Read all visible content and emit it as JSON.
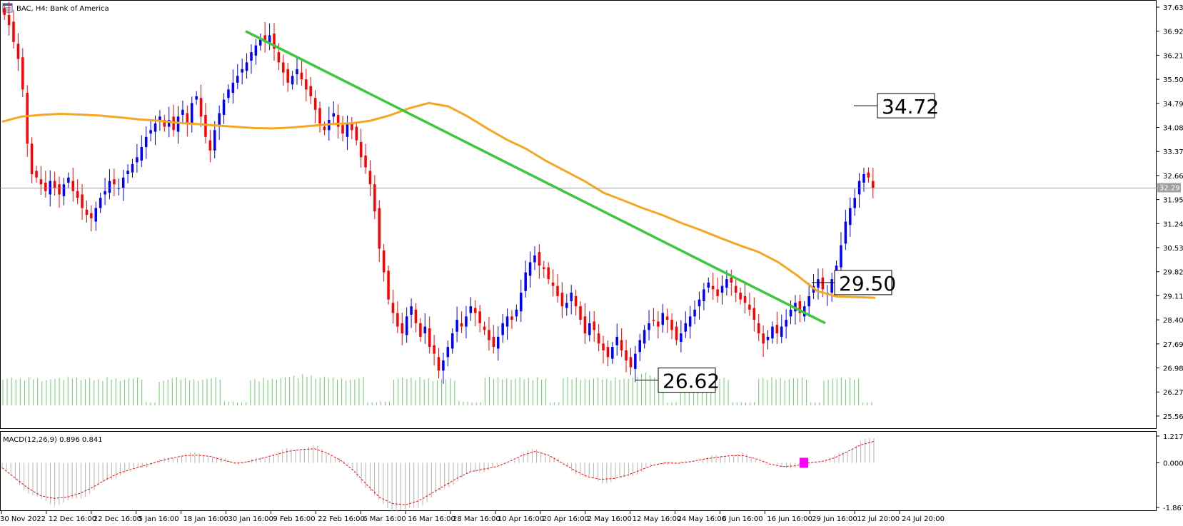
{
  "header": {
    "symbol_line": "BAC, H4:  Bank of America",
    "menu_icon": "chart-menu-icon"
  },
  "chart_data": {
    "type": "candlestick",
    "symbol": "BAC",
    "timeframe": "H4",
    "instrument": "Bank of America",
    "price_axis": {
      "ticks": [
        "37.63",
        "36.92",
        "36.21",
        "35.50",
        "34.79",
        "34.08",
        "33.37",
        "32.66",
        "31.95",
        "31.24",
        "30.53",
        "29.82",
        "29.11",
        "28.40",
        "27.69",
        "26.98",
        "26.27",
        "25.56"
      ],
      "range": [
        25.2,
        37.82
      ],
      "current_price": "32.29"
    },
    "time_axis": {
      "labels": [
        "30 Nov 2022",
        "12 Dec 16:00",
        "22 Dec 16:00",
        "5 Jan 16:00",
        "18 Jan 16:00",
        "30 Jan 16:00",
        "9 Feb 16:00",
        "22 Feb 16:00",
        "6 Mar 16:00",
        "16 Mar 16:00",
        "28 Mar 16:00",
        "10 Apr 16:00",
        "20 Apr 16:00",
        "2 May 16:00",
        "12 May 16:00",
        "24 May 16:00",
        "6 Jun 16:00",
        "16 Jun 16:00",
        "29 Jun 16:00",
        "12 Jul 20:00",
        "24 Jul 20:00"
      ]
    },
    "closes": [
      37.4,
      37.1,
      36.6,
      36.1,
      35.2,
      33.6,
      32.7,
      32.6,
      32.4,
      32.2,
      32.5,
      32.3,
      32.1,
      32.4,
      32.6,
      32.2,
      32.0,
      31.7,
      31.5,
      31.4,
      31.7,
      32.0,
      32.2,
      32.5,
      32.4,
      32.3,
      32.6,
      32.8,
      33.0,
      33.2,
      33.5,
      33.8,
      34.0,
      34.2,
      34.4,
      34.1,
      34.3,
      34.0,
      34.4,
      34.6,
      34.2,
      34.8,
      35.0,
      34.4,
      33.8,
      33.4,
      34.0,
      34.5,
      34.9,
      35.2,
      35.4,
      35.6,
      35.8,
      36.0,
      36.3,
      36.5,
      36.7,
      36.6,
      36.8,
      36.4,
      36.0,
      35.7,
      35.4,
      35.6,
      35.8,
      35.5,
      35.2,
      35.0,
      34.6,
      34.2,
      34.0,
      34.3,
      34.5,
      34.1,
      33.9,
      34.2,
      34.0,
      33.7,
      33.2,
      32.9,
      32.4,
      31.6,
      30.5,
      29.8,
      29.0,
      28.6,
      28.2,
      28.0,
      28.5,
      28.8,
      28.3,
      27.9,
      28.2,
      27.6,
      27.4,
      26.9,
      27.2,
      27.6,
      28.0,
      28.4,
      28.2,
      28.5,
      28.8,
      28.6,
      28.3,
      28.1,
      27.8,
      27.6,
      27.9,
      28.3,
      28.5,
      28.4,
      28.7,
      29.2,
      29.8,
      30.1,
      30.3,
      30.0,
      29.9,
      29.6,
      29.4,
      29.1,
      28.8,
      28.9,
      29.2,
      28.8,
      28.4,
      28.0,
      28.3,
      28.1,
      27.7,
      27.5,
      27.3,
      27.6,
      27.9,
      27.5,
      27.2,
      27.0,
      27.4,
      27.8,
      28.1,
      28.3,
      28.4,
      28.2,
      28.6,
      28.4,
      28.1,
      27.8,
      28.0,
      28.3,
      28.5,
      28.7,
      29.0,
      29.3,
      29.5,
      29.3,
      29.1,
      29.4,
      29.6,
      29.5,
      29.2,
      29.0,
      28.9,
      28.7,
      28.4,
      28.0,
      27.7,
      27.9,
      28.2,
      28.0,
      28.2,
      28.4,
      28.7,
      28.9,
      28.6,
      28.8,
      29.1,
      29.4,
      29.6,
      29.3,
      29.2,
      29.6,
      30.0,
      30.6,
      31.3,
      31.7,
      32.0,
      32.5,
      32.7,
      32.6,
      32.3
    ],
    "ma_series": [
      34.25,
      34.4,
      34.45,
      34.48,
      34.46,
      34.43,
      34.38,
      34.32,
      34.28,
      34.22,
      34.18,
      34.14,
      34.1,
      34.06,
      34.05,
      34.08,
      34.13,
      34.18,
      34.2,
      34.28,
      34.44,
      34.65,
      34.8,
      34.7,
      34.4,
      34.05,
      33.72,
      33.45,
      33.1,
      32.8,
      32.5,
      32.15,
      31.93,
      31.7,
      31.5,
      31.26,
      31.05,
      30.82,
      30.6,
      30.4,
      30.1,
      29.7,
      29.25,
      29.09,
      29.07,
      29.05
    ],
    "trendline": {
      "start": 36.92,
      "end": 28.3
    },
    "annotations": [
      {
        "label": "34.72",
        "price": 34.72
      },
      {
        "label": "29.50",
        "price": 29.5
      },
      {
        "label": "26.62",
        "price": 26.62
      }
    ],
    "macd": {
      "label": "MACD(12,26,9) 0.896 0.841",
      "ticks": [
        "1.217",
        "0.000",
        "-1.867"
      ],
      "range": [
        -1.867,
        1.217
      ],
      "signal": [
        -0.2,
        -0.6,
        -1.0,
        -1.3,
        -1.4,
        -1.35,
        -1.2,
        -0.95,
        -0.65,
        -0.4,
        -0.25,
        -0.1,
        0.05,
        0.18,
        0.28,
        0.3,
        0.25,
        0.1,
        -0.02,
        0.05,
        0.18,
        0.32,
        0.45,
        0.52,
        0.55,
        0.38,
        0.1,
        -0.3,
        -0.85,
        -1.35,
        -1.6,
        -1.65,
        -1.5,
        -1.2,
        -0.9,
        -0.6,
        -0.35,
        -0.25,
        -0.15,
        0.05,
        0.3,
        0.45,
        0.3,
        0.0,
        -0.3,
        -0.55,
        -0.65,
        -0.62,
        -0.5,
        -0.3,
        -0.1,
        0.0,
        -0.02,
        0.05,
        0.15,
        0.22,
        0.28,
        0.28,
        0.15,
        -0.05,
        -0.15,
        -0.12,
        0.0,
        0.05,
        0.2,
        0.45,
        0.7,
        0.84
      ],
      "histogram_max": 0.896,
      "marker_value": 0.0
    },
    "volume_relative": [
      0.85,
      0.82,
      0.86,
      0.8,
      0.84,
      0.88,
      0.83,
      0.8,
      0.86,
      0.82,
      0.85,
      0.1,
      0.78,
      0.86,
      0.83,
      0.81,
      0.86,
      0.12,
      0.1,
      0.8,
      0.84,
      0.86,
      0.9,
      0.95,
      0.88,
      0.85,
      0.82,
      0.86,
      0.1,
      0.12,
      0.85,
      0.84,
      0.86,
      0.8,
      0.82,
      0.12,
      0.1,
      0.88,
      0.86,
      0.85,
      0.83,
      0.85,
      0.1,
      0.86,
      0.84,
      0.85,
      0.82,
      0.85,
      0.88,
      1.0,
      0.85,
      0.1,
      0.84,
      0.86,
      0.82,
      0.84,
      0.1,
      0.1,
      0.84,
      0.86,
      0.83,
      0.85,
      0.1,
      0.82,
      0.85,
      0.84,
      0.1
    ]
  },
  "colors": {
    "bull": "#0000ff",
    "bear": "#ff0000",
    "ma": "#f5a623",
    "trend": "#3cc83c",
    "volume": "#6ccc6c",
    "macd_signal": "#ff0000",
    "macd_hist": "#b4b4b4",
    "marker": "#ff00ff",
    "grid_line": "#808080"
  }
}
